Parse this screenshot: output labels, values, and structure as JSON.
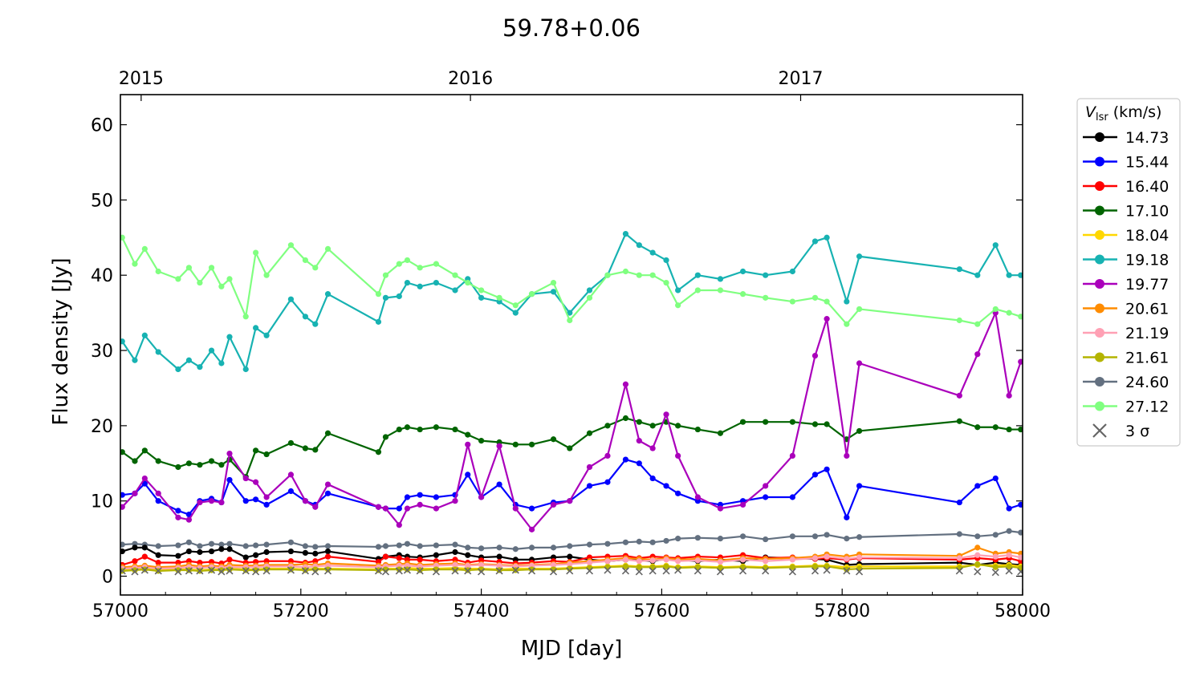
{
  "chart_data": {
    "type": "line",
    "title": "59.78+0.06",
    "xlabel": "MJD [day]",
    "ylabel": "Flux density [Jy]",
    "xlim": [
      57000,
      58000
    ],
    "ylim": [
      -2.5,
      64
    ],
    "xticks": [
      57000,
      57200,
      57400,
      57600,
      57800,
      58000
    ],
    "yticks": [
      0,
      10,
      20,
      30,
      40,
      50,
      60
    ],
    "top_axis": {
      "ticks": [
        {
          "label": "2015",
          "mjd": 57023
        },
        {
          "label": "2016",
          "mjd": 57388
        },
        {
          "label": "2017",
          "mjd": 57754
        }
      ]
    },
    "legend": {
      "title_main": "V",
      "title_sub": "lsr",
      "title_unit": " (km/s)",
      "placement": "outside-right",
      "sigma_label": "3 σ"
    },
    "x": [
      57002,
      57016,
      57027,
      57042,
      57064,
      57076,
      57088,
      57101,
      57112,
      57121,
      57139,
      57150,
      57162,
      57189,
      57205,
      57216,
      57230,
      57286,
      57294,
      57309,
      57318,
      57332,
      57350,
      57371,
      57385,
      57400,
      57420,
      57438,
      57456,
      57480,
      57498,
      57520,
      57540,
      57560,
      57575,
      57590,
      57605,
      57618,
      57640,
      57665,
      57690,
      57715,
      57745,
      57770,
      57783,
      57805,
      57819,
      57930,
      57950,
      57970,
      57985,
      57998
    ],
    "series": [
      {
        "name": "14.73",
        "color": "#000000",
        "values": [
          3.3,
          3.8,
          3.8,
          2.8,
          2.7,
          3.3,
          3.2,
          3.3,
          3.6,
          3.6,
          2.5,
          2.8,
          3.2,
          3.3,
          3.1,
          3.0,
          3.3,
          2.3,
          2.6,
          2.8,
          2.6,
          2.5,
          2.8,
          3.2,
          2.8,
          2.5,
          2.6,
          2.2,
          2.2,
          2.5,
          2.6,
          2.2,
          2.0,
          2.2,
          2.1,
          2.0,
          2.3,
          2.2,
          2.0,
          2.2,
          2.0,
          2.5,
          2.4,
          2.3,
          2.2,
          1.5,
          1.6,
          1.8,
          1.5,
          1.8,
          1.6,
          1.5
        ]
      },
      {
        "name": "15.44",
        "color": "#0000ff",
        "values": [
          10.8,
          11,
          12.3,
          10,
          8.7,
          8.2,
          10,
          10.3,
          9.8,
          12.8,
          10,
          10.2,
          9.5,
          11.3,
          10,
          9.5,
          11,
          9.2,
          9,
          9,
          10.5,
          10.8,
          10.5,
          10.8,
          13.5,
          10.5,
          12.2,
          9.5,
          9,
          9.8,
          10,
          12,
          12.5,
          15.5,
          15,
          13,
          12,
          11,
          10,
          9.5,
          10,
          10.5,
          10.5,
          13.5,
          14.2,
          7.8,
          12,
          9.8,
          12,
          13,
          9,
          9.5
        ]
      },
      {
        "name": "16.40",
        "color": "#ff0000",
        "values": [
          1.5,
          2.0,
          2.6,
          1.8,
          1.8,
          2.0,
          1.8,
          1.9,
          1.7,
          2.2,
          1.8,
          1.9,
          2.0,
          2.0,
          1.8,
          2.0,
          2.6,
          1.9,
          2.6,
          2.4,
          2.2,
          2.2,
          2.0,
          2.2,
          1.8,
          2.1,
          1.9,
          1.7,
          1.8,
          2.0,
          1.9,
          2.5,
          2.6,
          2.7,
          2.4,
          2.6,
          2.5,
          2.4,
          2.6,
          2.5,
          2.8,
          2.4,
          2.5,
          2.3,
          2.4,
          2.2,
          2.4,
          2.2,
          2.4,
          2.2,
          2.4,
          2.0
        ]
      },
      {
        "name": "17.10",
        "color": "#006400",
        "values": [
          16.5,
          15.3,
          16.7,
          15.3,
          14.5,
          15,
          14.8,
          15.3,
          14.8,
          15.5,
          13.2,
          16.7,
          16.2,
          17.7,
          17,
          16.8,
          19,
          16.5,
          18.5,
          19.5,
          19.8,
          19.5,
          19.8,
          19.5,
          18.8,
          18,
          17.8,
          17.5,
          17.5,
          18.2,
          17,
          19,
          20,
          21,
          20.5,
          20,
          20.5,
          20,
          19.5,
          19,
          20.5,
          20.5,
          20.5,
          20.2,
          20.2,
          18.2,
          19.3,
          20.6,
          19.8,
          19.8,
          19.5,
          19.5
        ]
      },
      {
        "name": "18.04",
        "color": "#ffd700",
        "values": [
          0.8,
          0.9,
          1.0,
          0.8,
          0.9,
          0.9,
          0.8,
          0.9,
          0.9,
          1.0,
          0.9,
          0.9,
          1.0,
          1.0,
          0.9,
          1.0,
          1.0,
          0.9,
          1.0,
          1.0,
          1.1,
          1.0,
          1.0,
          1.1,
          1.0,
          1.0,
          0.9,
          1.0,
          1.0,
          1.0,
          1.1,
          1.2,
          1.3,
          1.4,
          1.3,
          1.3,
          1.4,
          1.2,
          1.3,
          1.2,
          1.3,
          1.2,
          1.3,
          1.4,
          1.4,
          1.2,
          1.3,
          1.3,
          1.5,
          1.4,
          1.5,
          1.3
        ]
      },
      {
        "name": "19.18",
        "color": "#17b2b2",
        "values": [
          31.2,
          28.7,
          32,
          29.8,
          27.5,
          28.7,
          27.8,
          30,
          28.3,
          31.8,
          27.5,
          33,
          32,
          36.8,
          34.5,
          33.5,
          37.5,
          33.8,
          37,
          37.2,
          39,
          38.5,
          39,
          38,
          39.5,
          37,
          36.5,
          35,
          37.5,
          37.8,
          35,
          38,
          40,
          45.5,
          44,
          43,
          42,
          38,
          40,
          39.5,
          40.5,
          40,
          40.5,
          44.5,
          45,
          36.5,
          42.5,
          40.8,
          40,
          44,
          40,
          40
        ]
      },
      {
        "name": "19.77",
        "color": "#aa00bb",
        "values": [
          9.2,
          11,
          13,
          11,
          7.8,
          7.5,
          9.8,
          10,
          9.8,
          16.3,
          13,
          12.5,
          10.5,
          13.5,
          10,
          9.2,
          12.2,
          9.2,
          9,
          6.8,
          9,
          9.5,
          9,
          10,
          17.5,
          10.5,
          17.3,
          9,
          6.2,
          9.5,
          10,
          14.5,
          16,
          25.5,
          18,
          17,
          21.5,
          16,
          10.5,
          9,
          9.5,
          12,
          16,
          29.3,
          34.2,
          16,
          28.3,
          24,
          29.5,
          35,
          24,
          28.5
        ]
      },
      {
        "name": "20.61",
        "color": "#ff8c00",
        "values": [
          1.2,
          1.3,
          1.4,
          1.2,
          1.3,
          1.5,
          1.3,
          1.4,
          1.3,
          1.5,
          1.4,
          1.4,
          1.5,
          1.5,
          1.6,
          1.5,
          1.7,
          1.4,
          1.5,
          1.6,
          1.7,
          1.5,
          1.6,
          1.7,
          1.5,
          1.6,
          1.5,
          1.4,
          1.5,
          1.6,
          1.8,
          2.0,
          2.2,
          2.4,
          2.3,
          2.2,
          2.4,
          2.2,
          2.3,
          2.1,
          2.4,
          2.3,
          2.4,
          2.6,
          2.9,
          2.6,
          2.9,
          2.7,
          3.8,
          3.0,
          3.2,
          3.0
        ]
      },
      {
        "name": "21.19",
        "color": "#ffa0b4",
        "values": [
          1.0,
          1.1,
          1.2,
          1.0,
          1.1,
          1.2,
          1.1,
          1.2,
          1.1,
          1.2,
          1.2,
          1.2,
          1.3,
          1.3,
          1.2,
          1.3,
          1.4,
          1.2,
          1.3,
          1.4,
          1.4,
          1.3,
          1.4,
          1.5,
          1.4,
          1.5,
          1.4,
          1.3,
          1.4,
          1.5,
          1.6,
          1.8,
          2.0,
          2.2,
          2.0,
          2.1,
          2.2,
          2.0,
          2.1,
          1.9,
          2.2,
          2.0,
          2.2,
          2.4,
          2.6,
          2.3,
          2.5,
          2.4,
          2.8,
          2.6,
          2.8,
          2.5
        ]
      },
      {
        "name": "21.61",
        "color": "#b4b400",
        "values": [
          0.7,
          0.8,
          0.9,
          0.7,
          0.8,
          0.8,
          0.7,
          0.8,
          0.8,
          0.9,
          0.8,
          0.8,
          0.9,
          0.9,
          0.8,
          0.9,
          0.9,
          0.8,
          0.9,
          0.9,
          0.9,
          0.8,
          0.9,
          0.9,
          0.8,
          0.9,
          0.8,
          0.8,
          0.9,
          0.9,
          1.0,
          1.1,
          1.2,
          1.3,
          1.2,
          1.2,
          1.3,
          1.1,
          1.2,
          1.1,
          1.2,
          1.1,
          1.2,
          1.3,
          1.3,
          0.9,
          1.0,
          1.1,
          1.6,
          1.2,
          1.3,
          1.1
        ]
      },
      {
        "name": "24.60",
        "color": "#637080",
        "values": [
          4.2,
          4.3,
          4.2,
          4.0,
          4.1,
          4.5,
          4.0,
          4.3,
          4.2,
          4.3,
          4.0,
          4.1,
          4.2,
          4.5,
          4.0,
          3.9,
          4.0,
          3.9,
          4.0,
          4.1,
          4.3,
          4.0,
          4.1,
          4.2,
          3.8,
          3.7,
          3.8,
          3.6,
          3.8,
          3.8,
          4.0,
          4.2,
          4.3,
          4.5,
          4.6,
          4.5,
          4.7,
          5.0,
          5.1,
          5.0,
          5.3,
          4.9,
          5.3,
          5.3,
          5.5,
          5.0,
          5.2,
          5.6,
          5.3,
          5.5,
          6.0,
          5.8
        ]
      },
      {
        "name": "27.12",
        "color": "#80ff80",
        "values": [
          45,
          41.5,
          43.5,
          40.5,
          39.5,
          41,
          39,
          41,
          38.5,
          39.5,
          34.5,
          43,
          40,
          44,
          42,
          41,
          43.5,
          37.5,
          40,
          41.5,
          42,
          41,
          41.5,
          40,
          39,
          38,
          37,
          36,
          37.5,
          39,
          34,
          37,
          40,
          40.5,
          40,
          40,
          39,
          36,
          38,
          38,
          37.5,
          37,
          36.5,
          37,
          36.5,
          33.5,
          35.5,
          34,
          33.5,
          35.5,
          35,
          34.5
        ]
      }
    ],
    "upper_limits": {
      "name": "3 σ",
      "color": "#666666",
      "values": [
        0.7,
        0.6,
        0.8,
        0.7,
        0.6,
        0.7,
        0.7,
        0.8,
        0.6,
        0.7,
        0.7,
        0.6,
        0.7,
        0.8,
        0.7,
        0.6,
        0.7,
        0.7,
        0.6,
        0.7,
        0.8,
        0.7,
        0.6,
        0.7,
        0.7,
        0.6,
        0.7,
        0.8,
        0.7,
        0.6,
        0.7,
        0.7,
        0.8,
        0.7,
        0.6,
        0.7,
        0.7,
        0.8,
        0.7,
        0.6,
        0.7,
        0.7,
        0.6,
        0.7,
        0.8,
        0.7,
        0.6,
        0.7,
        0.6,
        0.5,
        0.7,
        0.6
      ]
    }
  }
}
